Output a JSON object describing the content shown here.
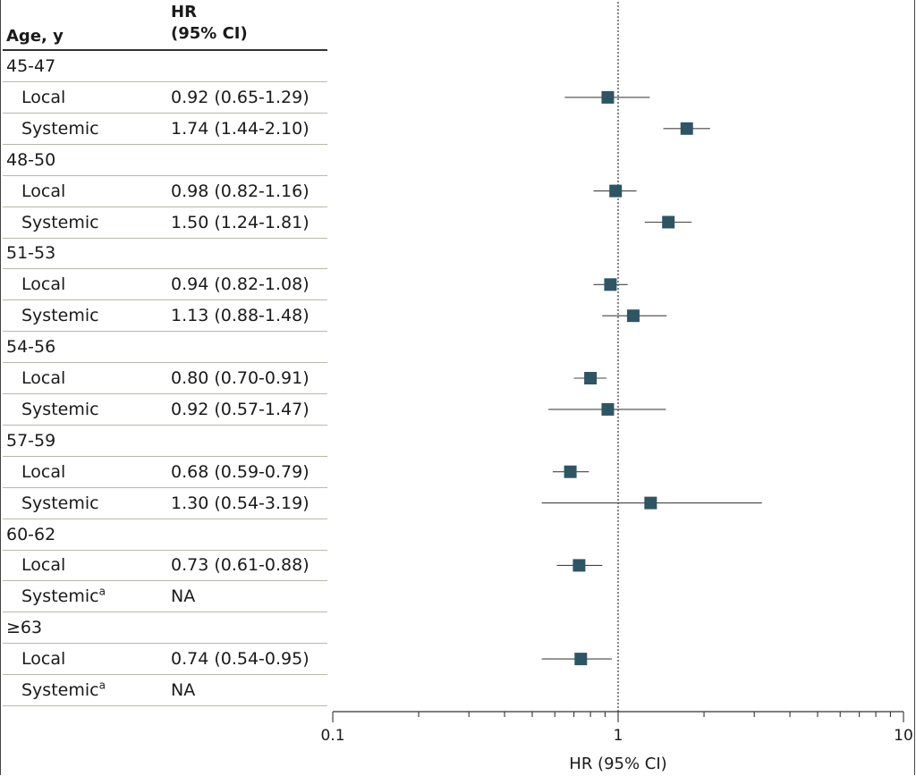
{
  "table": {
    "header_age": "Age, y",
    "header_hr_line1": "HR",
    "header_hr_line2": "(95% CI)"
  },
  "chart_data": {
    "type": "forest",
    "x_scale": "log",
    "xlim": [
      0.1,
      10
    ],
    "x_ticks": [
      "0.1",
      "1",
      "10"
    ],
    "xlabel": "HR (95% CI)",
    "reference_line": 1,
    "marker_color": "#2e5563",
    "rows": [
      {
        "kind": "group",
        "label": "45-47"
      },
      {
        "kind": "item",
        "label": "Local",
        "text": "0.92 (0.65-1.29)",
        "hr": 0.92,
        "lo": 0.65,
        "hi": 1.29
      },
      {
        "kind": "item",
        "label": "Systemic",
        "text": "1.74 (1.44-2.10)",
        "hr": 1.74,
        "lo": 1.44,
        "hi": 2.1
      },
      {
        "kind": "group",
        "label": "48-50"
      },
      {
        "kind": "item",
        "label": "Local",
        "text": "0.98 (0.82-1.16)",
        "hr": 0.98,
        "lo": 0.82,
        "hi": 1.16
      },
      {
        "kind": "item",
        "label": "Systemic",
        "text": "1.50 (1.24-1.81)",
        "hr": 1.5,
        "lo": 1.24,
        "hi": 1.81
      },
      {
        "kind": "group",
        "label": "51-53"
      },
      {
        "kind": "item",
        "label": "Local",
        "text": "0.94 (0.82-1.08)",
        "hr": 0.94,
        "lo": 0.82,
        "hi": 1.08
      },
      {
        "kind": "item",
        "label": "Systemic",
        "text": "1.13 (0.88-1.48)",
        "hr": 1.13,
        "lo": 0.88,
        "hi": 1.48
      },
      {
        "kind": "group",
        "label": "54-56"
      },
      {
        "kind": "item",
        "label": "Local",
        "text": "0.80 (0.70-0.91)",
        "hr": 0.8,
        "lo": 0.7,
        "hi": 0.91
      },
      {
        "kind": "item",
        "label": "Systemic",
        "text": "0.92 (0.57-1.47)",
        "hr": 0.92,
        "lo": 0.57,
        "hi": 1.47
      },
      {
        "kind": "group",
        "label": "57-59"
      },
      {
        "kind": "item",
        "label": "Local",
        "text": "0.68 (0.59-0.79)",
        "hr": 0.68,
        "lo": 0.59,
        "hi": 0.79
      },
      {
        "kind": "item",
        "label": "Systemic",
        "text": "1.30 (0.54-3.19)",
        "hr": 1.3,
        "lo": 0.54,
        "hi": 3.19
      },
      {
        "kind": "group",
        "label": "60-62"
      },
      {
        "kind": "item",
        "label": "Local",
        "text": "0.73 (0.61-0.88)",
        "hr": 0.73,
        "lo": 0.61,
        "hi": 0.88
      },
      {
        "kind": "item",
        "label": "Systemic",
        "sup": "a",
        "text": "NA",
        "hr": null,
        "lo": null,
        "hi": null
      },
      {
        "kind": "group",
        "label": "≥63"
      },
      {
        "kind": "item",
        "label": "Local",
        "text": "0.74 (0.54-0.95)",
        "hr": 0.74,
        "lo": 0.54,
        "hi": 0.95
      },
      {
        "kind": "item",
        "label": "Systemic",
        "sup": "a",
        "text": "NA",
        "hr": null,
        "lo": null,
        "hi": null
      }
    ]
  }
}
